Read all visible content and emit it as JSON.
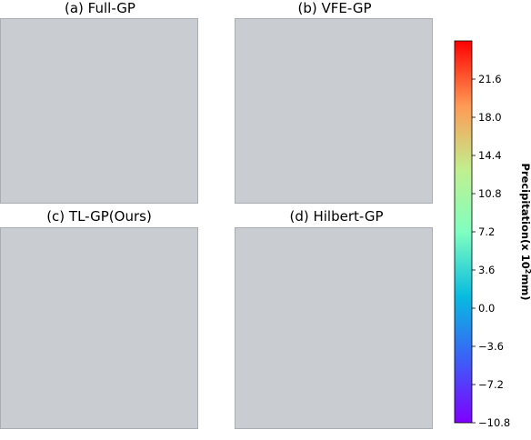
{
  "panels": [
    {
      "title": "(a) Full-GP"
    },
    {
      "title": "(b) VFE-GP"
    },
    {
      "title": "(c) TL-GP(Ours)"
    },
    {
      "title": "(d) Hilbert-GP"
    }
  ],
  "chart_data": {
    "type": "heatmap",
    "colorbar": {
      "label_text": "Precipitation(x 10",
      "label_exp": "2",
      "label_unit": "mm)",
      "range": [
        -10.8,
        25.2
      ],
      "colormap": "rainbow",
      "ticks": [
        -10.8,
        -7.2,
        -3.6,
        0.0,
        3.6,
        7.2,
        10.8,
        14.4,
        18.0,
        21.6
      ],
      "tick_labels": [
        "−10.8",
        "−7.2",
        "−3.6",
        "0.0",
        "3.6",
        "7.2",
        "10.8",
        "14.4",
        "18.0",
        "21.6"
      ]
    }
  }
}
